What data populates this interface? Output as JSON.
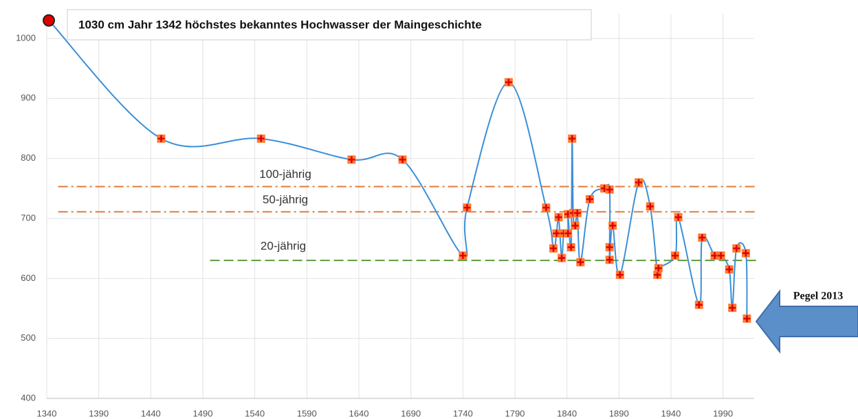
{
  "chart_data": {
    "type": "line",
    "annotation": "1030 cm Jahr 1342 höchstes bekanntes Hochwasser der Maingeschichte",
    "arrow_label": "Pegel 2013",
    "xlim": [
      1340,
      2020
    ],
    "xticks": [
      1340,
      1390,
      1440,
      1490,
      1540,
      1590,
      1640,
      1690,
      1740,
      1790,
      1840,
      1890,
      1940,
      1990
    ],
    "ylim": [
      400,
      1040
    ],
    "yticks": [
      400,
      500,
      600,
      700,
      800,
      900,
      1000
    ],
    "grid": true,
    "series": [
      {
        "color": "#3a8fd8",
        "x": [
          1342,
          1450,
          1546,
          1633,
          1682,
          1740,
          1744,
          1784,
          1820,
          1827,
          1830,
          1832,
          1835,
          1837,
          1841,
          1841,
          1844,
          1845,
          1846,
          1848,
          1850,
          1853,
          1862,
          1876,
          1881,
          1881,
          1881,
          1884,
          1891,
          1909,
          1920,
          1927,
          1928,
          1944,
          1947,
          1967,
          1970,
          1982,
          1988,
          1996,
          1999,
          2003,
          2012,
          2013
        ],
        "values": [
          1030,
          833,
          833,
          798,
          798,
          638,
          718,
          927,
          718,
          650,
          675,
          702,
          634,
          675,
          675,
          707,
          652,
          833,
          709,
          688,
          709,
          627,
          732,
          750,
          748,
          652,
          631,
          688,
          606,
          760,
          720,
          606,
          617,
          638,
          702,
          556,
          668,
          638,
          638,
          615,
          551,
          650,
          642,
          533
        ]
      }
    ],
    "reference_lines": [
      {
        "label": "100-jährig",
        "value": 753,
        "from": 1351,
        "color": "#e07a3a",
        "style": "dashdot"
      },
      {
        "label": "50-jährig",
        "value": 711,
        "from": 1351,
        "color": "#e07a3a",
        "style": "dashdot"
      },
      {
        "label": "20-jährig",
        "value": 630,
        "from": 1497,
        "color": "#5b9a3c",
        "style": "dash"
      }
    ]
  }
}
